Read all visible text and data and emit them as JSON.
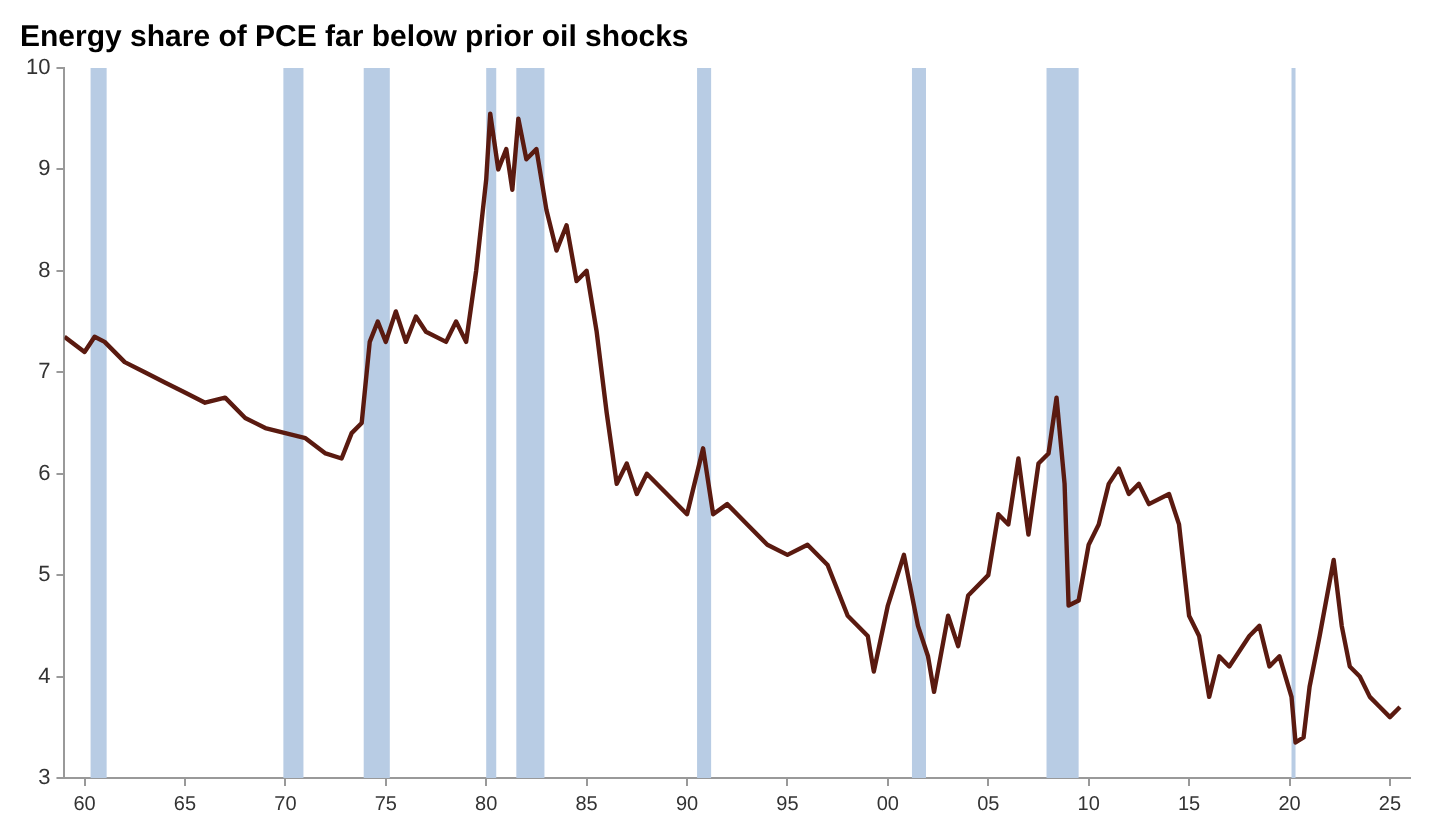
{
  "chart_data": {
    "type": "line",
    "title": "Energy share of PCE far below prior oil shocks",
    "xlim": [
      1959,
      2026
    ],
    "ylim": [
      3,
      10
    ],
    "yticks": [
      3,
      4,
      5,
      6,
      7,
      8,
      9,
      10
    ],
    "xticks": [
      {
        "value": 1960,
        "label": "60"
      },
      {
        "value": 1965,
        "label": "65"
      },
      {
        "value": 1970,
        "label": "70"
      },
      {
        "value": 1975,
        "label": "75"
      },
      {
        "value": 1980,
        "label": "80"
      },
      {
        "value": 1985,
        "label": "85"
      },
      {
        "value": 1990,
        "label": "90"
      },
      {
        "value": 1995,
        "label": "95"
      },
      {
        "value": 2000,
        "label": "00"
      },
      {
        "value": 2005,
        "label": "05"
      },
      {
        "value": 2010,
        "label": "10"
      },
      {
        "value": 2015,
        "label": "15"
      },
      {
        "value": 2020,
        "label": "20"
      },
      {
        "value": 2025,
        "label": "25"
      }
    ],
    "grid": false,
    "legend": false,
    "marker": "none",
    "line_style": "solid",
    "bands": [
      {
        "axis": "x",
        "from": 1960.3,
        "to": 1961.1,
        "color": "#b8cce4"
      },
      {
        "axis": "x",
        "from": 1969.9,
        "to": 1970.9,
        "color": "#b8cce4"
      },
      {
        "axis": "x",
        "from": 1973.9,
        "to": 1975.2,
        "color": "#b8cce4"
      },
      {
        "axis": "x",
        "from": 1980.0,
        "to": 1980.5,
        "color": "#b8cce4"
      },
      {
        "axis": "x",
        "from": 1981.5,
        "to": 1982.9,
        "color": "#b8cce4"
      },
      {
        "axis": "x",
        "from": 1990.5,
        "to": 1991.2,
        "color": "#b8cce4"
      },
      {
        "axis": "x",
        "from": 2001.2,
        "to": 2001.9,
        "color": "#b8cce4"
      },
      {
        "axis": "x",
        "from": 2007.9,
        "to": 2009.5,
        "color": "#b8cce4"
      },
      {
        "axis": "x",
        "from": 2020.1,
        "to": 2020.3,
        "color": "#b8cce4"
      }
    ],
    "series": [
      {
        "color": "#5a1a10",
        "x": [
          1959,
          1960,
          1960.5,
          1961,
          1962,
          1963,
          1964,
          1965,
          1966,
          1967,
          1968,
          1969,
          1970,
          1971,
          1972,
          1972.8,
          1973.3,
          1973.8,
          1974.2,
          1974.6,
          1975,
          1975.5,
          1976,
          1976.5,
          1977,
          1978,
          1978.5,
          1979,
          1979.5,
          1980,
          1980.2,
          1980.6,
          1981,
          1981.3,
          1981.6,
          1982,
          1982.5,
          1983,
          1983.5,
          1984,
          1984.5,
          1985,
          1985.5,
          1986,
          1986.5,
          1987,
          1987.5,
          1988,
          1989,
          1990,
          1990.8,
          1991.3,
          1992,
          1993,
          1994,
          1995,
          1996,
          1997,
          1998,
          1999,
          1999.3,
          2000,
          2000.8,
          2001.5,
          2002,
          2002.3,
          2003,
          2003.5,
          2004,
          2005,
          2005.5,
          2006,
          2006.5,
          2007,
          2007.5,
          2008,
          2008.4,
          2008.8,
          2009,
          2009.5,
          2010,
          2010.5,
          2011,
          2011.5,
          2012,
          2012.5,
          2013,
          2014,
          2014.5,
          2015,
          2015.5,
          2016,
          2016.5,
          2017,
          2018,
          2018.5,
          2019,
          2019.5,
          2020.1,
          2020.3,
          2020.7,
          2021,
          2021.5,
          2022.2,
          2022.6,
          2023,
          2023.5,
          2024,
          2024.5,
          2025,
          2025.5
        ],
        "values": [
          7.35,
          7.2,
          7.35,
          7.3,
          7.1,
          7.0,
          6.9,
          6.8,
          6.7,
          6.75,
          6.55,
          6.45,
          6.4,
          6.35,
          6.2,
          6.15,
          6.4,
          6.5,
          7.3,
          7.5,
          7.3,
          7.6,
          7.3,
          7.55,
          7.4,
          7.3,
          7.5,
          7.3,
          8.0,
          8.9,
          9.55,
          9.0,
          9.2,
          8.8,
          9.5,
          9.1,
          9.2,
          8.6,
          8.2,
          8.45,
          7.9,
          8.0,
          7.4,
          6.6,
          5.9,
          6.1,
          5.8,
          6.0,
          5.8,
          5.6,
          6.25,
          5.6,
          5.7,
          5.5,
          5.3,
          5.2,
          5.3,
          5.1,
          4.6,
          4.4,
          4.05,
          4.7,
          5.2,
          4.5,
          4.2,
          3.85,
          4.6,
          4.3,
          4.8,
          5.0,
          5.6,
          5.5,
          6.15,
          5.4,
          6.1,
          6.2,
          6.75,
          5.9,
          4.7,
          4.75,
          5.3,
          5.5,
          5.9,
          6.05,
          5.8,
          5.9,
          5.7,
          5.8,
          5.5,
          4.6,
          4.4,
          3.8,
          4.2,
          4.1,
          4.4,
          4.5,
          4.1,
          4.2,
          3.8,
          3.35,
          3.4,
          3.9,
          4.4,
          5.15,
          4.5,
          4.1,
          4.0,
          3.8,
          3.7,
          3.6,
          3.7
        ]
      }
    ]
  }
}
